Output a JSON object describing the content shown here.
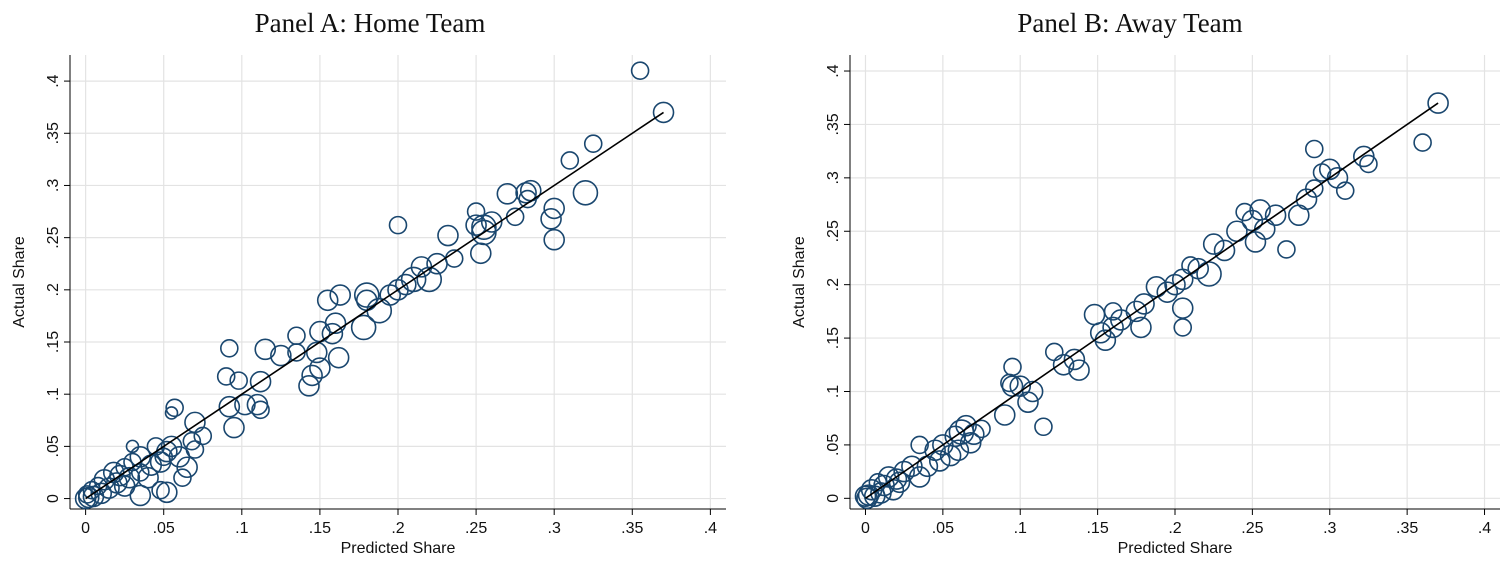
{
  "chart_data": [
    {
      "type": "scatter",
      "title": "Panel A: Home Team",
      "xlabel": "Predicted Share",
      "ylabel": "Actual Share",
      "xlim": [
        -0.01,
        0.41
      ],
      "ylim": [
        -0.01,
        0.425
      ],
      "xticks": [
        0,
        0.05,
        0.1,
        0.15,
        0.2,
        0.25,
        0.3,
        0.35,
        0.4
      ],
      "xtick_labels": [
        "0",
        ".05",
        ".1",
        ".15",
        ".2",
        ".25",
        ".3",
        ".35",
        ".4"
      ],
      "yticks": [
        0,
        0.05,
        0.1,
        0.15,
        0.2,
        0.25,
        0.3,
        0.35,
        0.4
      ],
      "ytick_labels": [
        "0",
        ".05",
        ".1",
        ".15",
        ".2",
        ".25",
        ".3",
        ".35",
        ".4"
      ],
      "grid": true,
      "marker": "hollow circle (size-weighted)",
      "marker_color": "#1a476f",
      "fit_line": {
        "x": [
          0,
          0.37
        ],
        "y": [
          0,
          0.37
        ],
        "color": "#000000"
      },
      "points": [
        [
          0.355,
          0.41,
          2
        ],
        [
          0.37,
          0.37,
          3
        ],
        [
          0.325,
          0.34,
          2
        ],
        [
          0.31,
          0.324,
          2
        ],
        [
          0.32,
          0.293,
          4
        ],
        [
          0.285,
          0.295,
          3
        ],
        [
          0.282,
          0.293,
          3
        ],
        [
          0.283,
          0.287,
          2
        ],
        [
          0.27,
          0.292,
          3
        ],
        [
          0.3,
          0.278,
          3
        ],
        [
          0.298,
          0.268,
          3
        ],
        [
          0.3,
          0.248,
          3
        ],
        [
          0.275,
          0.27,
          2
        ],
        [
          0.26,
          0.265,
          3
        ],
        [
          0.255,
          0.26,
          4
        ],
        [
          0.25,
          0.275,
          2
        ],
        [
          0.25,
          0.262,
          3
        ],
        [
          0.255,
          0.255,
          4
        ],
        [
          0.253,
          0.235,
          3
        ],
        [
          0.232,
          0.252,
          3
        ],
        [
          0.236,
          0.23,
          2
        ],
        [
          0.225,
          0.225,
          3
        ],
        [
          0.22,
          0.21,
          4
        ],
        [
          0.215,
          0.222,
          3
        ],
        [
          0.21,
          0.21,
          4
        ],
        [
          0.2,
          0.262,
          2
        ],
        [
          0.205,
          0.205,
          3
        ],
        [
          0.2,
          0.2,
          3
        ],
        [
          0.195,
          0.195,
          3
        ],
        [
          0.188,
          0.18,
          4
        ],
        [
          0.18,
          0.195,
          4
        ],
        [
          0.18,
          0.19,
          3
        ],
        [
          0.178,
          0.164,
          4
        ],
        [
          0.163,
          0.195,
          3
        ],
        [
          0.155,
          0.19,
          3
        ],
        [
          0.16,
          0.168,
          3
        ],
        [
          0.158,
          0.158,
          3
        ],
        [
          0.162,
          0.135,
          3
        ],
        [
          0.15,
          0.16,
          3
        ],
        [
          0.148,
          0.14,
          3
        ],
        [
          0.15,
          0.125,
          3
        ],
        [
          0.145,
          0.118,
          3
        ],
        [
          0.143,
          0.108,
          3
        ],
        [
          0.135,
          0.156,
          2
        ],
        [
          0.135,
          0.14,
          2
        ],
        [
          0.125,
          0.137,
          3
        ],
        [
          0.115,
          0.143,
          3
        ],
        [
          0.112,
          0.112,
          3
        ],
        [
          0.11,
          0.09,
          3
        ],
        [
          0.112,
          0.085,
          2
        ],
        [
          0.102,
          0.09,
          3
        ],
        [
          0.098,
          0.113,
          2
        ],
        [
          0.092,
          0.088,
          3
        ],
        [
          0.095,
          0.068,
          3
        ],
        [
          0.09,
          0.117,
          2
        ],
        [
          0.092,
          0.144,
          2
        ],
        [
          0.075,
          0.06,
          2
        ],
        [
          0.07,
          0.073,
          3
        ],
        [
          0.068,
          0.055,
          2
        ],
        [
          0.07,
          0.047,
          2
        ],
        [
          0.065,
          0.03,
          3
        ],
        [
          0.062,
          0.02,
          2
        ],
        [
          0.06,
          0.04,
          3
        ],
        [
          0.057,
          0.087,
          2
        ],
        [
          0.055,
          0.082,
          1
        ],
        [
          0.055,
          0.05,
          3
        ],
        [
          0.052,
          0.045,
          3
        ],
        [
          0.05,
          0.04,
          2
        ],
        [
          0.048,
          0.035,
          3
        ],
        [
          0.045,
          0.05,
          2
        ],
        [
          0.042,
          0.032,
          3
        ],
        [
          0.04,
          0.02,
          3
        ],
        [
          0.035,
          0.04,
          3
        ],
        [
          0.035,
          0.025,
          2
        ],
        [
          0.035,
          0.003,
          3
        ],
        [
          0.03,
          0.05,
          1
        ],
        [
          0.03,
          0.035,
          2
        ],
        [
          0.028,
          0.02,
          3
        ],
        [
          0.025,
          0.03,
          2
        ],
        [
          0.025,
          0.012,
          3
        ],
        [
          0.022,
          0.022,
          3
        ],
        [
          0.02,
          0.015,
          3
        ],
        [
          0.018,
          0.025,
          3
        ],
        [
          0.015,
          0.01,
          3
        ],
        [
          0.012,
          0.018,
          3
        ],
        [
          0.01,
          0.005,
          3
        ],
        [
          0.008,
          0.012,
          2
        ],
        [
          0.005,
          0.002,
          3
        ],
        [
          0.004,
          0.008,
          2
        ],
        [
          0.002,
          0.001,
          3
        ],
        [
          0.001,
          0.004,
          2
        ],
        [
          0.0,
          0.0,
          3
        ],
        [
          0.048,
          0.008,
          2
        ],
        [
          0.052,
          0.006,
          3
        ]
      ]
    },
    {
      "type": "scatter",
      "title": "Panel B: Away Team",
      "xlabel": "Predicted Share",
      "ylabel": "Actual Share",
      "xlim": [
        -0.01,
        0.41
      ],
      "ylim": [
        -0.01,
        0.415
      ],
      "xticks": [
        0,
        0.05,
        0.1,
        0.15,
        0.2,
        0.25,
        0.3,
        0.35,
        0.4
      ],
      "xtick_labels": [
        "0",
        ".05",
        ".1",
        ".15",
        ".2",
        ".25",
        ".3",
        ".35",
        ".4"
      ],
      "yticks": [
        0,
        0.05,
        0.1,
        0.15,
        0.2,
        0.25,
        0.3,
        0.35,
        0.4
      ],
      "ytick_labels": [
        "0",
        ".05",
        ".1",
        ".15",
        ".2",
        ".25",
        ".3",
        ".35",
        ".4"
      ],
      "grid": true,
      "marker": "hollow circle (size-weighted)",
      "marker_color": "#1a476f",
      "fit_line": {
        "x": [
          0,
          0.37
        ],
        "y": [
          0,
          0.37
        ],
        "color": "#000000"
      },
      "points": [
        [
          0.37,
          0.37,
          3
        ],
        [
          0.36,
          0.333,
          2
        ],
        [
          0.325,
          0.313,
          2
        ],
        [
          0.322,
          0.32,
          3
        ],
        [
          0.31,
          0.288,
          2
        ],
        [
          0.305,
          0.3,
          3
        ],
        [
          0.3,
          0.308,
          3
        ],
        [
          0.295,
          0.305,
          2
        ],
        [
          0.29,
          0.327,
          2
        ],
        [
          0.29,
          0.29,
          2
        ],
        [
          0.285,
          0.28,
          3
        ],
        [
          0.28,
          0.265,
          3
        ],
        [
          0.272,
          0.233,
          2
        ],
        [
          0.265,
          0.265,
          3
        ],
        [
          0.258,
          0.252,
          3
        ],
        [
          0.255,
          0.27,
          3
        ],
        [
          0.25,
          0.26,
          3
        ],
        [
          0.252,
          0.24,
          3
        ],
        [
          0.245,
          0.268,
          2
        ],
        [
          0.24,
          0.25,
          3
        ],
        [
          0.232,
          0.232,
          3
        ],
        [
          0.225,
          0.238,
          3
        ],
        [
          0.222,
          0.21,
          4
        ],
        [
          0.215,
          0.215,
          3
        ],
        [
          0.21,
          0.218,
          2
        ],
        [
          0.205,
          0.205,
          3
        ],
        [
          0.205,
          0.178,
          3
        ],
        [
          0.205,
          0.16,
          2
        ],
        [
          0.2,
          0.2,
          3
        ],
        [
          0.195,
          0.193,
          3
        ],
        [
          0.188,
          0.198,
          3
        ],
        [
          0.18,
          0.182,
          3
        ],
        [
          0.178,
          0.16,
          3
        ],
        [
          0.175,
          0.175,
          3
        ],
        [
          0.165,
          0.167,
          3
        ],
        [
          0.16,
          0.16,
          3
        ],
        [
          0.16,
          0.175,
          2
        ],
        [
          0.155,
          0.148,
          3
        ],
        [
          0.152,
          0.155,
          3
        ],
        [
          0.148,
          0.172,
          3
        ],
        [
          0.138,
          0.12,
          3
        ],
        [
          0.135,
          0.13,
          3
        ],
        [
          0.128,
          0.125,
          3
        ],
        [
          0.122,
          0.137,
          2
        ],
        [
          0.115,
          0.067,
          2
        ],
        [
          0.108,
          0.1,
          3
        ],
        [
          0.105,
          0.09,
          3
        ],
        [
          0.1,
          0.105,
          3
        ],
        [
          0.095,
          0.105,
          3
        ],
        [
          0.095,
          0.123,
          2
        ],
        [
          0.093,
          0.108,
          2
        ],
        [
          0.09,
          0.078,
          3
        ],
        [
          0.075,
          0.065,
          2
        ],
        [
          0.07,
          0.06,
          3
        ],
        [
          0.068,
          0.052,
          3
        ],
        [
          0.065,
          0.068,
          3
        ],
        [
          0.062,
          0.062,
          4
        ],
        [
          0.06,
          0.045,
          3
        ],
        [
          0.058,
          0.058,
          3
        ],
        [
          0.055,
          0.04,
          3
        ],
        [
          0.05,
          0.05,
          3
        ],
        [
          0.048,
          0.035,
          3
        ],
        [
          0.045,
          0.045,
          3
        ],
        [
          0.04,
          0.03,
          3
        ],
        [
          0.035,
          0.05,
          2
        ],
        [
          0.035,
          0.02,
          3
        ],
        [
          0.03,
          0.03,
          3
        ],
        [
          0.025,
          0.025,
          3
        ],
        [
          0.022,
          0.015,
          3
        ],
        [
          0.02,
          0.018,
          3
        ],
        [
          0.018,
          0.008,
          3
        ],
        [
          0.015,
          0.02,
          3
        ],
        [
          0.012,
          0.012,
          3
        ],
        [
          0.01,
          0.005,
          3
        ],
        [
          0.008,
          0.015,
          2
        ],
        [
          0.006,
          0.002,
          3
        ],
        [
          0.004,
          0.008,
          3
        ],
        [
          0.002,
          0.003,
          3
        ],
        [
          0.001,
          0.0,
          3
        ],
        [
          0.0,
          0.002,
          3
        ]
      ]
    }
  ]
}
